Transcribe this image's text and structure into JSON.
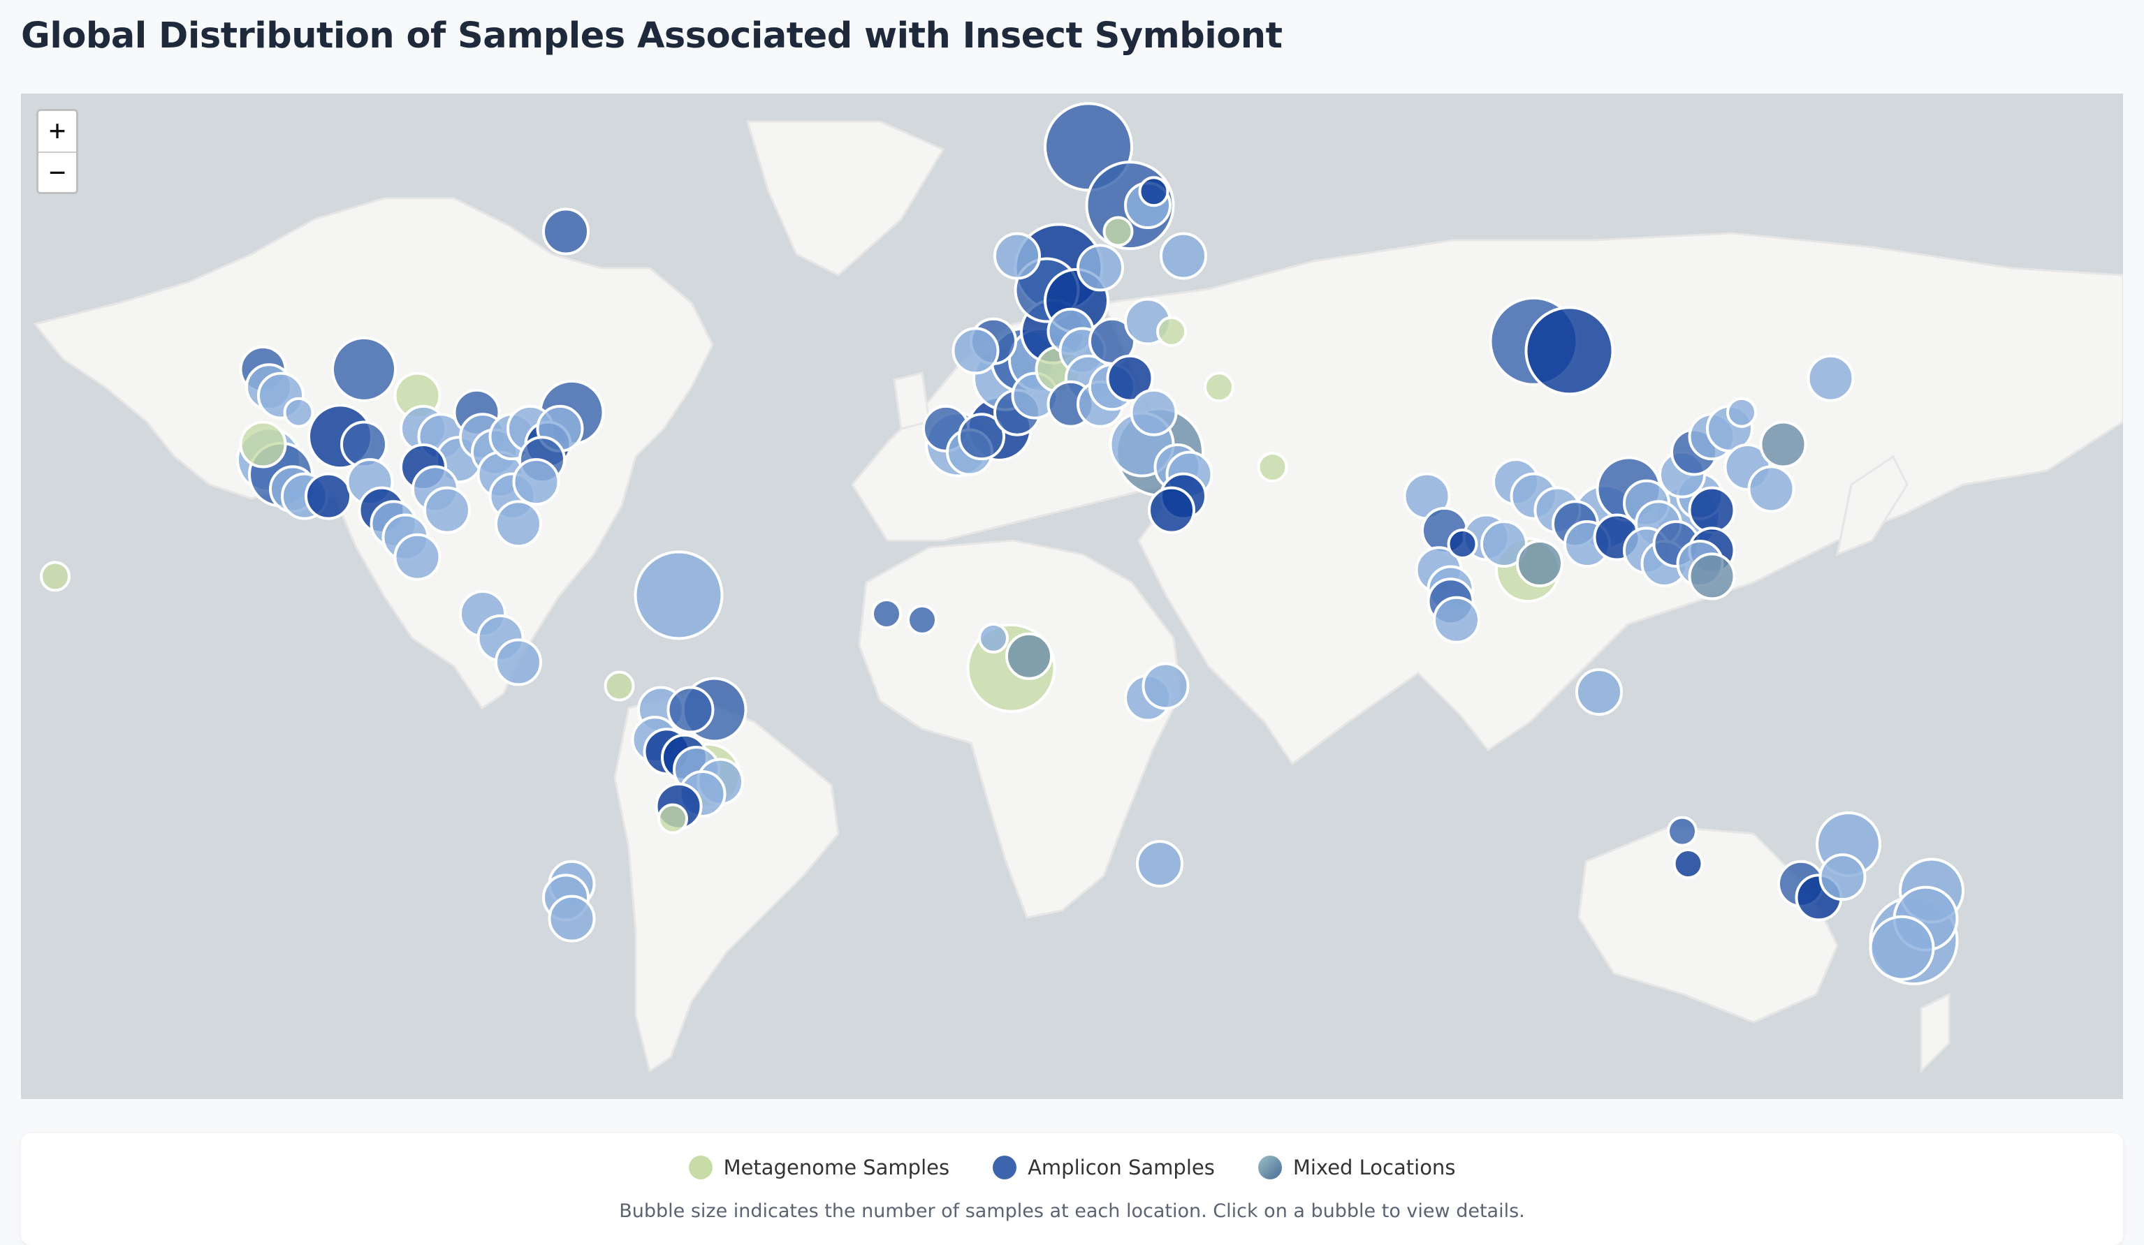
{
  "title": "Global Distribution of Samples Associated with Insect Symbiont",
  "zoom": {
    "in_label": "+",
    "out_label": "−"
  },
  "legend": {
    "items": [
      {
        "label": "Metagenome Samples",
        "color": "#c7dba6"
      },
      {
        "label": "Amplicon Samples",
        "color": "#3c65ad"
      },
      {
        "label": "Mixed Locations",
        "color": "#6f8fa8"
      }
    ],
    "note": "Bubble size indicates the number of samples at each location. Click on a bubble to view details."
  },
  "colors": {
    "ocean": "#d3d8dc",
    "land": "#f5f5f4",
    "metagenome": "#c7dba6",
    "amplicon_dark": "#0d3c98",
    "amplicon_mid": "#3c65ad",
    "amplicon_light": "#8cb0dc",
    "mixed": "#6f8fa8"
  },
  "bubbles": [
    {
      "lon": -72,
      "lat": 62,
      "size": 2,
      "kind": "amp_mid"
    },
    {
      "lon": -158,
      "lat": 21,
      "size": 1,
      "kind": "meta"
    },
    {
      "lon": -123,
      "lat": 49,
      "size": 2,
      "kind": "amp_mid"
    },
    {
      "lon": -122,
      "lat": 47,
      "size": 2,
      "kind": "amp_light"
    },
    {
      "lon": -120,
      "lat": 46,
      "size": 2,
      "kind": "amp_light"
    },
    {
      "lon": -117,
      "lat": 44,
      "size": 1,
      "kind": "amp_light"
    },
    {
      "lon": -123,
      "lat": 40,
      "size": 2,
      "kind": "meta"
    },
    {
      "lon": -122,
      "lat": 38,
      "size": 3,
      "kind": "amp_light"
    },
    {
      "lon": -120,
      "lat": 36,
      "size": 3,
      "kind": "amp_mid"
    },
    {
      "lon": -118,
      "lat": 34,
      "size": 2,
      "kind": "amp_light"
    },
    {
      "lon": -116,
      "lat": 33,
      "size": 2,
      "kind": "amp_light"
    },
    {
      "lon": -112,
      "lat": 33,
      "size": 2,
      "kind": "amp_dark"
    },
    {
      "lon": -110,
      "lat": 41,
      "size": 3,
      "kind": "amp_dark"
    },
    {
      "lon": -106,
      "lat": 40,
      "size": 2,
      "kind": "amp_mid"
    },
    {
      "lon": -105,
      "lat": 35,
      "size": 2,
      "kind": "amp_light"
    },
    {
      "lon": -103,
      "lat": 31,
      "size": 2,
      "kind": "amp_dark"
    },
    {
      "lon": -101,
      "lat": 29,
      "size": 2,
      "kind": "amp_light"
    },
    {
      "lon": -99,
      "lat": 27,
      "size": 2,
      "kind": "amp_light"
    },
    {
      "lon": -97,
      "lat": 24,
      "size": 2,
      "kind": "amp_light"
    },
    {
      "lon": -106,
      "lat": 49,
      "size": 3,
      "kind": "amp_mid"
    },
    {
      "lon": -97,
      "lat": 46,
      "size": 2,
      "kind": "meta"
    },
    {
      "lon": -96,
      "lat": 42,
      "size": 2,
      "kind": "amp_light"
    },
    {
      "lon": -93,
      "lat": 41,
      "size": 2,
      "kind": "amp_light"
    },
    {
      "lon": -90,
      "lat": 38,
      "size": 2,
      "kind": "amp_light"
    },
    {
      "lon": -96,
      "lat": 37,
      "size": 2,
      "kind": "amp_dark"
    },
    {
      "lon": -94,
      "lat": 34,
      "size": 2,
      "kind": "amp_light"
    },
    {
      "lon": -92,
      "lat": 31,
      "size": 2,
      "kind": "amp_light"
    },
    {
      "lon": -87,
      "lat": 44,
      "size": 2,
      "kind": "amp_mid"
    },
    {
      "lon": -86,
      "lat": 41,
      "size": 2,
      "kind": "amp_light"
    },
    {
      "lon": -84,
      "lat": 39,
      "size": 2,
      "kind": "amp_light"
    },
    {
      "lon": -83,
      "lat": 36,
      "size": 2,
      "kind": "amp_light"
    },
    {
      "lon": -81,
      "lat": 33,
      "size": 2,
      "kind": "amp_light"
    },
    {
      "lon": -80,
      "lat": 29,
      "size": 2,
      "kind": "amp_light"
    },
    {
      "lon": -81,
      "lat": 41,
      "size": 2,
      "kind": "amp_light"
    },
    {
      "lon": -78,
      "lat": 42,
      "size": 2,
      "kind": "amp_light"
    },
    {
      "lon": -75,
      "lat": 40,
      "size": 2,
      "kind": "amp_dark"
    },
    {
      "lon": -73,
      "lat": 42,
      "size": 2,
      "kind": "amp_light"
    },
    {
      "lon": -71,
      "lat": 44,
      "size": 3,
      "kind": "amp_mid"
    },
    {
      "lon": -76,
      "lat": 38,
      "size": 2,
      "kind": "amp_mid"
    },
    {
      "lon": -77,
      "lat": 35,
      "size": 2,
      "kind": "amp_light"
    },
    {
      "lon": -53,
      "lat": 18,
      "size": 4,
      "kind": "amp_light"
    },
    {
      "lon": -86,
      "lat": 15,
      "size": 2,
      "kind": "amp_light"
    },
    {
      "lon": -83,
      "lat": 11,
      "size": 2,
      "kind": "amp_light"
    },
    {
      "lon": -80,
      "lat": 7,
      "size": 2,
      "kind": "amp_light"
    },
    {
      "lon": -63,
      "lat": 3,
      "size": 1,
      "kind": "meta"
    },
    {
      "lon": -56,
      "lat": -1,
      "size": 2,
      "kind": "amp_light"
    },
    {
      "lon": -51,
      "lat": -1,
      "size": 2,
      "kind": "amp_mid"
    },
    {
      "lon": -47,
      "lat": -1,
      "size": 3,
      "kind": "amp_mid"
    },
    {
      "lon": -57,
      "lat": -6,
      "size": 2,
      "kind": "amp_light"
    },
    {
      "lon": -55,
      "lat": -8,
      "size": 2,
      "kind": "amp_dark"
    },
    {
      "lon": -52,
      "lat": -9,
      "size": 2,
      "kind": "amp_dark"
    },
    {
      "lon": -50,
      "lat": -11,
      "size": 2,
      "kind": "amp_light"
    },
    {
      "lon": -48,
      "lat": -12,
      "size": 3,
      "kind": "meta"
    },
    {
      "lon": -46,
      "lat": -13,
      "size": 2,
      "kind": "amp_light"
    },
    {
      "lon": -49,
      "lat": -15,
      "size": 2,
      "kind": "amp_light"
    },
    {
      "lon": -53,
      "lat": -17,
      "size": 2,
      "kind": "amp_dark"
    },
    {
      "lon": -54,
      "lat": -19,
      "size": 1,
      "kind": "meta"
    },
    {
      "lon": -71,
      "lat": -29,
      "size": 2,
      "kind": "amp_light"
    },
    {
      "lon": -72,
      "lat": -31,
      "size": 2,
      "kind": "amp_light"
    },
    {
      "lon": -71,
      "lat": -34,
      "size": 2,
      "kind": "amp_light"
    },
    {
      "lon": -18,
      "lat": 15,
      "size": 1,
      "kind": "amp_mid"
    },
    {
      "lon": -12,
      "lat": 14,
      "size": 1,
      "kind": "amp_mid"
    },
    {
      "lon": 0,
      "lat": 11,
      "size": 1,
      "kind": "amp_light"
    },
    {
      "lon": 3,
      "lat": 6,
      "size": 4,
      "kind": "meta"
    },
    {
      "lon": 6,
      "lat": 8,
      "size": 2,
      "kind": "mixed"
    },
    {
      "lon": 26,
      "lat": 1,
      "size": 2,
      "kind": "amp_light"
    },
    {
      "lon": 29,
      "lat": 3,
      "size": 2,
      "kind": "amp_light"
    },
    {
      "lon": 28,
      "lat": -26,
      "size": 2,
      "kind": "amp_light"
    },
    {
      "lon": 0,
      "lat": 52,
      "size": 2,
      "kind": "amp_mid"
    },
    {
      "lon": -3,
      "lat": 51,
      "size": 2,
      "kind": "amp_light"
    },
    {
      "lon": -8,
      "lat": 42,
      "size": 2,
      "kind": "amp_mid"
    },
    {
      "lon": -6,
      "lat": 40,
      "size": 3,
      "kind": "amp_light"
    },
    {
      "lon": -4,
      "lat": 39,
      "size": 2,
      "kind": "amp_light"
    },
    {
      "lon": -2,
      "lat": 41,
      "size": 2,
      "kind": "amp_mid"
    },
    {
      "lon": 1,
      "lat": 42,
      "size": 3,
      "kind": "amp_dark"
    },
    {
      "lon": 4,
      "lat": 44,
      "size": 2,
      "kind": "amp_mid"
    },
    {
      "lon": 7,
      "lat": 46,
      "size": 2,
      "kind": "amp_light"
    },
    {
      "lon": 2,
      "lat": 48,
      "size": 3,
      "kind": "amp_light"
    },
    {
      "lon": 5,
      "lat": 50,
      "size": 3,
      "kind": "amp_mid"
    },
    {
      "lon": 8,
      "lat": 50,
      "size": 3,
      "kind": "amp_light"
    },
    {
      "lon": 11,
      "lat": 49,
      "size": 2,
      "kind": "meta"
    },
    {
      "lon": 10,
      "lat": 53,
      "size": 3,
      "kind": "amp_dark"
    },
    {
      "lon": 13,
      "lat": 53,
      "size": 2,
      "kind": "amp_light"
    },
    {
      "lon": 15,
      "lat": 51,
      "size": 2,
      "kind": "amp_light"
    },
    {
      "lon": 16,
      "lat": 48,
      "size": 2,
      "kind": "amp_light"
    },
    {
      "lon": 13,
      "lat": 45,
      "size": 2,
      "kind": "amp_mid"
    },
    {
      "lon": 18,
      "lat": 45,
      "size": 2,
      "kind": "amp_light"
    },
    {
      "lon": 20,
      "lat": 47,
      "size": 2,
      "kind": "amp_light"
    },
    {
      "lon": 9,
      "lat": 57,
      "size": 3,
      "kind": "amp_mid"
    },
    {
      "lon": 11,
      "lat": 59,
      "size": 4,
      "kind": "amp_dark"
    },
    {
      "lon": 14,
      "lat": 56,
      "size": 3,
      "kind": "amp_dark"
    },
    {
      "lon": 18,
      "lat": 59,
      "size": 2,
      "kind": "amp_light"
    },
    {
      "lon": 4,
      "lat": 60,
      "size": 2,
      "kind": "amp_light"
    },
    {
      "lon": 16,
      "lat": 68,
      "size": 4,
      "kind": "amp_mid"
    },
    {
      "lon": 23,
      "lat": 64,
      "size": 4,
      "kind": "amp_mid"
    },
    {
      "lon": 26,
      "lat": 64,
      "size": 2,
      "kind": "amp_light"
    },
    {
      "lon": 27,
      "lat": 65,
      "size": 1,
      "kind": "amp_dark"
    },
    {
      "lon": 21,
      "lat": 62,
      "size": 1,
      "kind": "meta"
    },
    {
      "lon": 32,
      "lat": 60,
      "size": 2,
      "kind": "amp_light"
    },
    {
      "lon": 30,
      "lat": 53,
      "size": 1,
      "kind": "meta"
    },
    {
      "lon": 20,
      "lat": 52,
      "size": 2,
      "kind": "amp_mid"
    },
    {
      "lon": 26,
      "lat": 54,
      "size": 2,
      "kind": "amp_light"
    },
    {
      "lon": 23,
      "lat": 48,
      "size": 2,
      "kind": "amp_dark"
    },
    {
      "lon": 27,
      "lat": 44,
      "size": 2,
      "kind": "amp_light"
    },
    {
      "lon": 25,
      "lat": 40,
      "size": 3,
      "kind": "amp_light"
    },
    {
      "lon": 28,
      "lat": 39,
      "size": 4,
      "kind": "mixed"
    },
    {
      "lon": 31,
      "lat": 37,
      "size": 2,
      "kind": "amp_light"
    },
    {
      "lon": 33,
      "lat": 36,
      "size": 2,
      "kind": "amp_light"
    },
    {
      "lon": 32,
      "lat": 33,
      "size": 2,
      "kind": "amp_dark"
    },
    {
      "lon": 30,
      "lat": 31,
      "size": 2,
      "kind": "amp_dark"
    },
    {
      "lon": 38,
      "lat": 47,
      "size": 1,
      "kind": "meta"
    },
    {
      "lon": 47,
      "lat": 37,
      "size": 1,
      "kind": "meta"
    },
    {
      "lon": 91,
      "lat": 52,
      "size": 4,
      "kind": "amp_mid"
    },
    {
      "lon": 97,
      "lat": 51,
      "size": 4,
      "kind": "amp_dark"
    },
    {
      "lon": 73,
      "lat": 33,
      "size": 2,
      "kind": "amp_light"
    },
    {
      "lon": 76,
      "lat": 28,
      "size": 2,
      "kind": "amp_mid"
    },
    {
      "lon": 79,
      "lat": 26,
      "size": 1,
      "kind": "amp_dark"
    },
    {
      "lon": 75,
      "lat": 22,
      "size": 2,
      "kind": "amp_light"
    },
    {
      "lon": 77,
      "lat": 19,
      "size": 2,
      "kind": "amp_light"
    },
    {
      "lon": 77,
      "lat": 17,
      "size": 2,
      "kind": "amp_mid"
    },
    {
      "lon": 78,
      "lat": 14,
      "size": 2,
      "kind": "amp_light"
    },
    {
      "lon": 83,
      "lat": 27,
      "size": 2,
      "kind": "amp_light"
    },
    {
      "lon": 86,
      "lat": 26,
      "size": 2,
      "kind": "amp_light"
    },
    {
      "lon": 90,
      "lat": 22,
      "size": 3,
      "kind": "meta"
    },
    {
      "lon": 92,
      "lat": 23,
      "size": 2,
      "kind": "mixed"
    },
    {
      "lon": 88,
      "lat": 35,
      "size": 2,
      "kind": "amp_light"
    },
    {
      "lon": 91,
      "lat": 33,
      "size": 2,
      "kind": "amp_light"
    },
    {
      "lon": 95,
      "lat": 31,
      "size": 2,
      "kind": "amp_light"
    },
    {
      "lon": 98,
      "lat": 29,
      "size": 2,
      "kind": "amp_mid"
    },
    {
      "lon": 100,
      "lat": 26,
      "size": 2,
      "kind": "amp_light"
    },
    {
      "lon": 103,
      "lat": 30,
      "size": 3,
      "kind": "amp_light"
    },
    {
      "lon": 105,
      "lat": 27,
      "size": 2,
      "kind": "amp_dark"
    },
    {
      "lon": 107,
      "lat": 34,
      "size": 3,
      "kind": "amp_mid"
    },
    {
      "lon": 110,
      "lat": 32,
      "size": 2,
      "kind": "amp_light"
    },
    {
      "lon": 112,
      "lat": 29,
      "size": 2,
      "kind": "amp_light"
    },
    {
      "lon": 110,
      "lat": 25,
      "size": 2,
      "kind": "amp_light"
    },
    {
      "lon": 113,
      "lat": 23,
      "size": 2,
      "kind": "amp_light"
    },
    {
      "lon": 115,
      "lat": 26,
      "size": 2,
      "kind": "amp_mid"
    },
    {
      "lon": 117,
      "lat": 30,
      "size": 3,
      "kind": "amp_light"
    },
    {
      "lon": 119,
      "lat": 33,
      "size": 2,
      "kind": "amp_light"
    },
    {
      "lon": 121,
      "lat": 31,
      "size": 2,
      "kind": "amp_dark"
    },
    {
      "lon": 116,
      "lat": 36,
      "size": 2,
      "kind": "amp_light"
    },
    {
      "lon": 118,
      "lat": 39,
      "size": 2,
      "kind": "amp_mid"
    },
    {
      "lon": 121,
      "lat": 41,
      "size": 2,
      "kind": "amp_light"
    },
    {
      "lon": 124,
      "lat": 42,
      "size": 2,
      "kind": "amp_light"
    },
    {
      "lon": 126,
      "lat": 44,
      "size": 1,
      "kind": "amp_light"
    },
    {
      "lon": 127,
      "lat": 37,
      "size": 2,
      "kind": "amp_light"
    },
    {
      "lon": 121,
      "lat": 25,
      "size": 2,
      "kind": "amp_dark"
    },
    {
      "lon": 119,
      "lat": 23,
      "size": 2,
      "kind": "amp_light"
    },
    {
      "lon": 121,
      "lat": 21,
      "size": 2,
      "kind": "mixed"
    },
    {
      "lon": 133,
      "lat": 40,
      "size": 2,
      "kind": "mixed"
    },
    {
      "lon": 131,
      "lat": 34,
      "size": 2,
      "kind": "amp_light"
    },
    {
      "lon": 141,
      "lat": 48,
      "size": 2,
      "kind": "amp_light"
    },
    {
      "lon": 102,
      "lat": 2,
      "size": 2,
      "kind": "amp_light"
    },
    {
      "lon": 116,
      "lat": -21,
      "size": 1,
      "kind": "amp_mid"
    },
    {
      "lon": 117,
      "lat": -26,
      "size": 1,
      "kind": "amp_dark"
    },
    {
      "lon": 136,
      "lat": -29,
      "size": 2,
      "kind": "amp_mid"
    },
    {
      "lon": 139,
      "lat": -31,
      "size": 2,
      "kind": "amp_dark"
    },
    {
      "lon": 144,
      "lat": -23,
      "size": 3,
      "kind": "amp_light"
    },
    {
      "lon": 143,
      "lat": -28,
      "size": 2,
      "kind": "amp_light"
    },
    {
      "lon": 158,
      "lat": -30,
      "size": 3,
      "kind": "amp_light"
    },
    {
      "lon": 157,
      "lat": -34,
      "size": 3,
      "kind": "amp_light"
    },
    {
      "lon": 155,
      "lat": -37,
      "size": 4,
      "kind": "amp_light"
    },
    {
      "lon": 153,
      "lat": -38,
      "size": 3,
      "kind": "amp_light"
    }
  ]
}
